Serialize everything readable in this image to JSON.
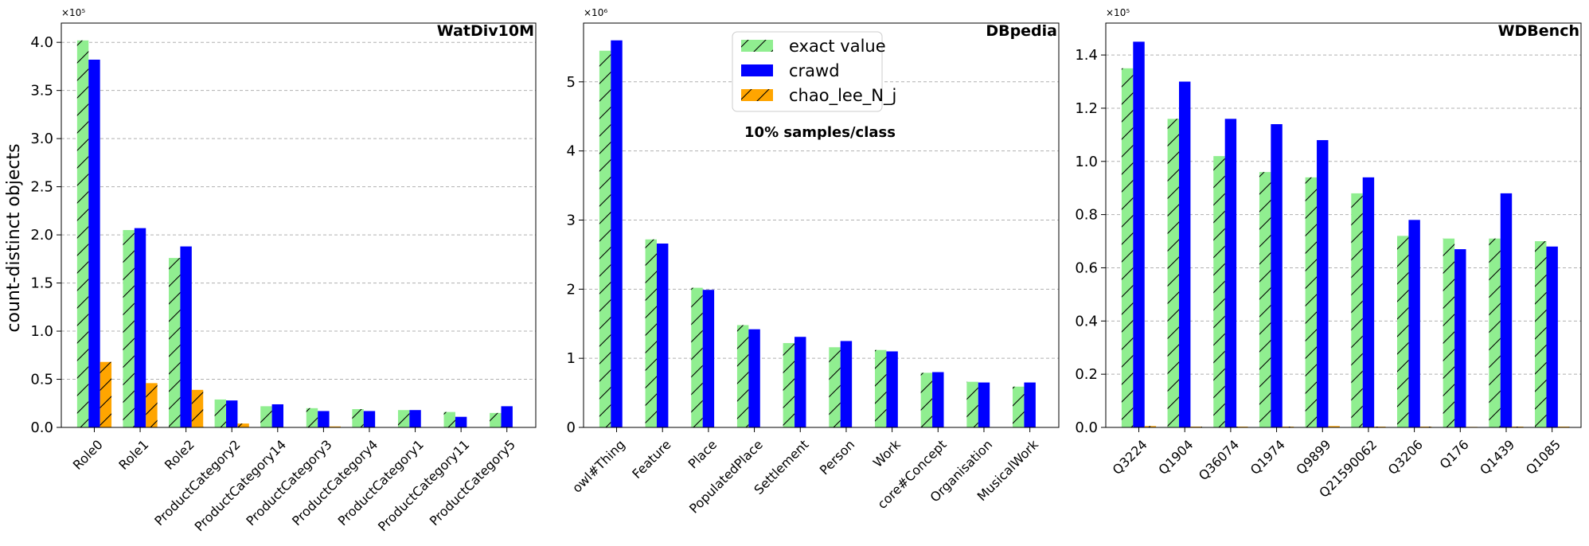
{
  "figure": {
    "ylabel": "count-distinct objects",
    "legend": {
      "placement": "top-center of middle panel",
      "entries": [
        {
          "label": "exact value",
          "color": "#90ee90",
          "hatch": "/"
        },
        {
          "label": "crawd",
          "color": "#0000ff",
          "hatch": ""
        },
        {
          "label": "chao_lee_N_j",
          "color": "#ffa500",
          "hatch": "/"
        }
      ]
    },
    "annotation": "10% samples/class"
  },
  "chart_data": [
    {
      "type": "bar",
      "title": "WatDiv10M",
      "multiplier": "×10⁵",
      "ylim": [
        0,
        4.2
      ],
      "yticks": [
        "0.0",
        "0.5",
        "1.0",
        "1.5",
        "2.0",
        "2.5",
        "3.0",
        "3.5",
        "4.0"
      ],
      "grid": true,
      "categories": [
        "Role0",
        "Role1",
        "Role2",
        "ProductCategory2",
        "ProductCategory14",
        "ProductCategory3",
        "ProductCategory4",
        "ProductCategory1",
        "ProductCategory11",
        "ProductCategory5"
      ],
      "series": [
        {
          "name": "exact value",
          "values": [
            4.02,
            2.05,
            1.76,
            0.29,
            0.22,
            0.2,
            0.19,
            0.18,
            0.16,
            0.15
          ]
        },
        {
          "name": "crawd",
          "values": [
            3.82,
            2.07,
            1.88,
            0.28,
            0.24,
            0.17,
            0.17,
            0.18,
            0.11,
            0.22
          ]
        },
        {
          "name": "chao_lee_N_j",
          "values": [
            0.68,
            0.46,
            0.39,
            0.04,
            0.0,
            0.01,
            0.0,
            0.0,
            0.0,
            0.0
          ]
        }
      ]
    },
    {
      "type": "bar",
      "title": "DBpedia",
      "multiplier": "×10⁶",
      "ylim": [
        0,
        5.85
      ],
      "yticks": [
        "0",
        "1",
        "2",
        "3",
        "4",
        "5"
      ],
      "grid": true,
      "categories": [
        "owl#Thing",
        "Feature",
        "Place",
        "PopulatedPlace",
        "Settlement",
        "Person",
        "Work",
        "core#Concept",
        "Organisation",
        "MusicalWork"
      ],
      "series": [
        {
          "name": "exact value",
          "values": [
            5.45,
            2.72,
            2.02,
            1.48,
            1.22,
            1.16,
            1.12,
            0.79,
            0.66,
            0.59
          ]
        },
        {
          "name": "crawd",
          "values": [
            5.6,
            2.66,
            1.99,
            1.42,
            1.31,
            1.25,
            1.1,
            0.8,
            0.65,
            0.65
          ]
        },
        {
          "name": "chao_lee_N_j",
          "values": [
            0,
            0,
            0,
            0,
            0,
            0,
            0,
            0,
            0,
            0
          ]
        }
      ]
    },
    {
      "type": "bar",
      "title": "WDBench",
      "multiplier": "×10⁵",
      "ylim": [
        0,
        1.52
      ],
      "yticks": [
        "0.0",
        "0.2",
        "0.4",
        "0.6",
        "0.8",
        "1.0",
        "1.2",
        "1.4"
      ],
      "grid": true,
      "categories": [
        "Q3224",
        "Q1904",
        "Q36074",
        "Q1974",
        "Q9899",
        "Q21590062",
        "Q3206",
        "Q176",
        "Q1439",
        "Q1085"
      ],
      "series": [
        {
          "name": "exact value",
          "values": [
            1.35,
            1.16,
            1.02,
            0.96,
            0.94,
            0.88,
            0.72,
            0.71,
            0.71,
            0.7
          ]
        },
        {
          "name": "crawd",
          "values": [
            1.45,
            1.3,
            1.16,
            1.14,
            1.08,
            0.94,
            0.78,
            0.67,
            0.88,
            0.68
          ]
        },
        {
          "name": "chao_lee_N_j",
          "values": [
            0.005,
            0.003,
            0.003,
            0.003,
            0.005,
            0.003,
            0.003,
            0.002,
            0.003,
            0.003
          ]
        }
      ]
    }
  ]
}
